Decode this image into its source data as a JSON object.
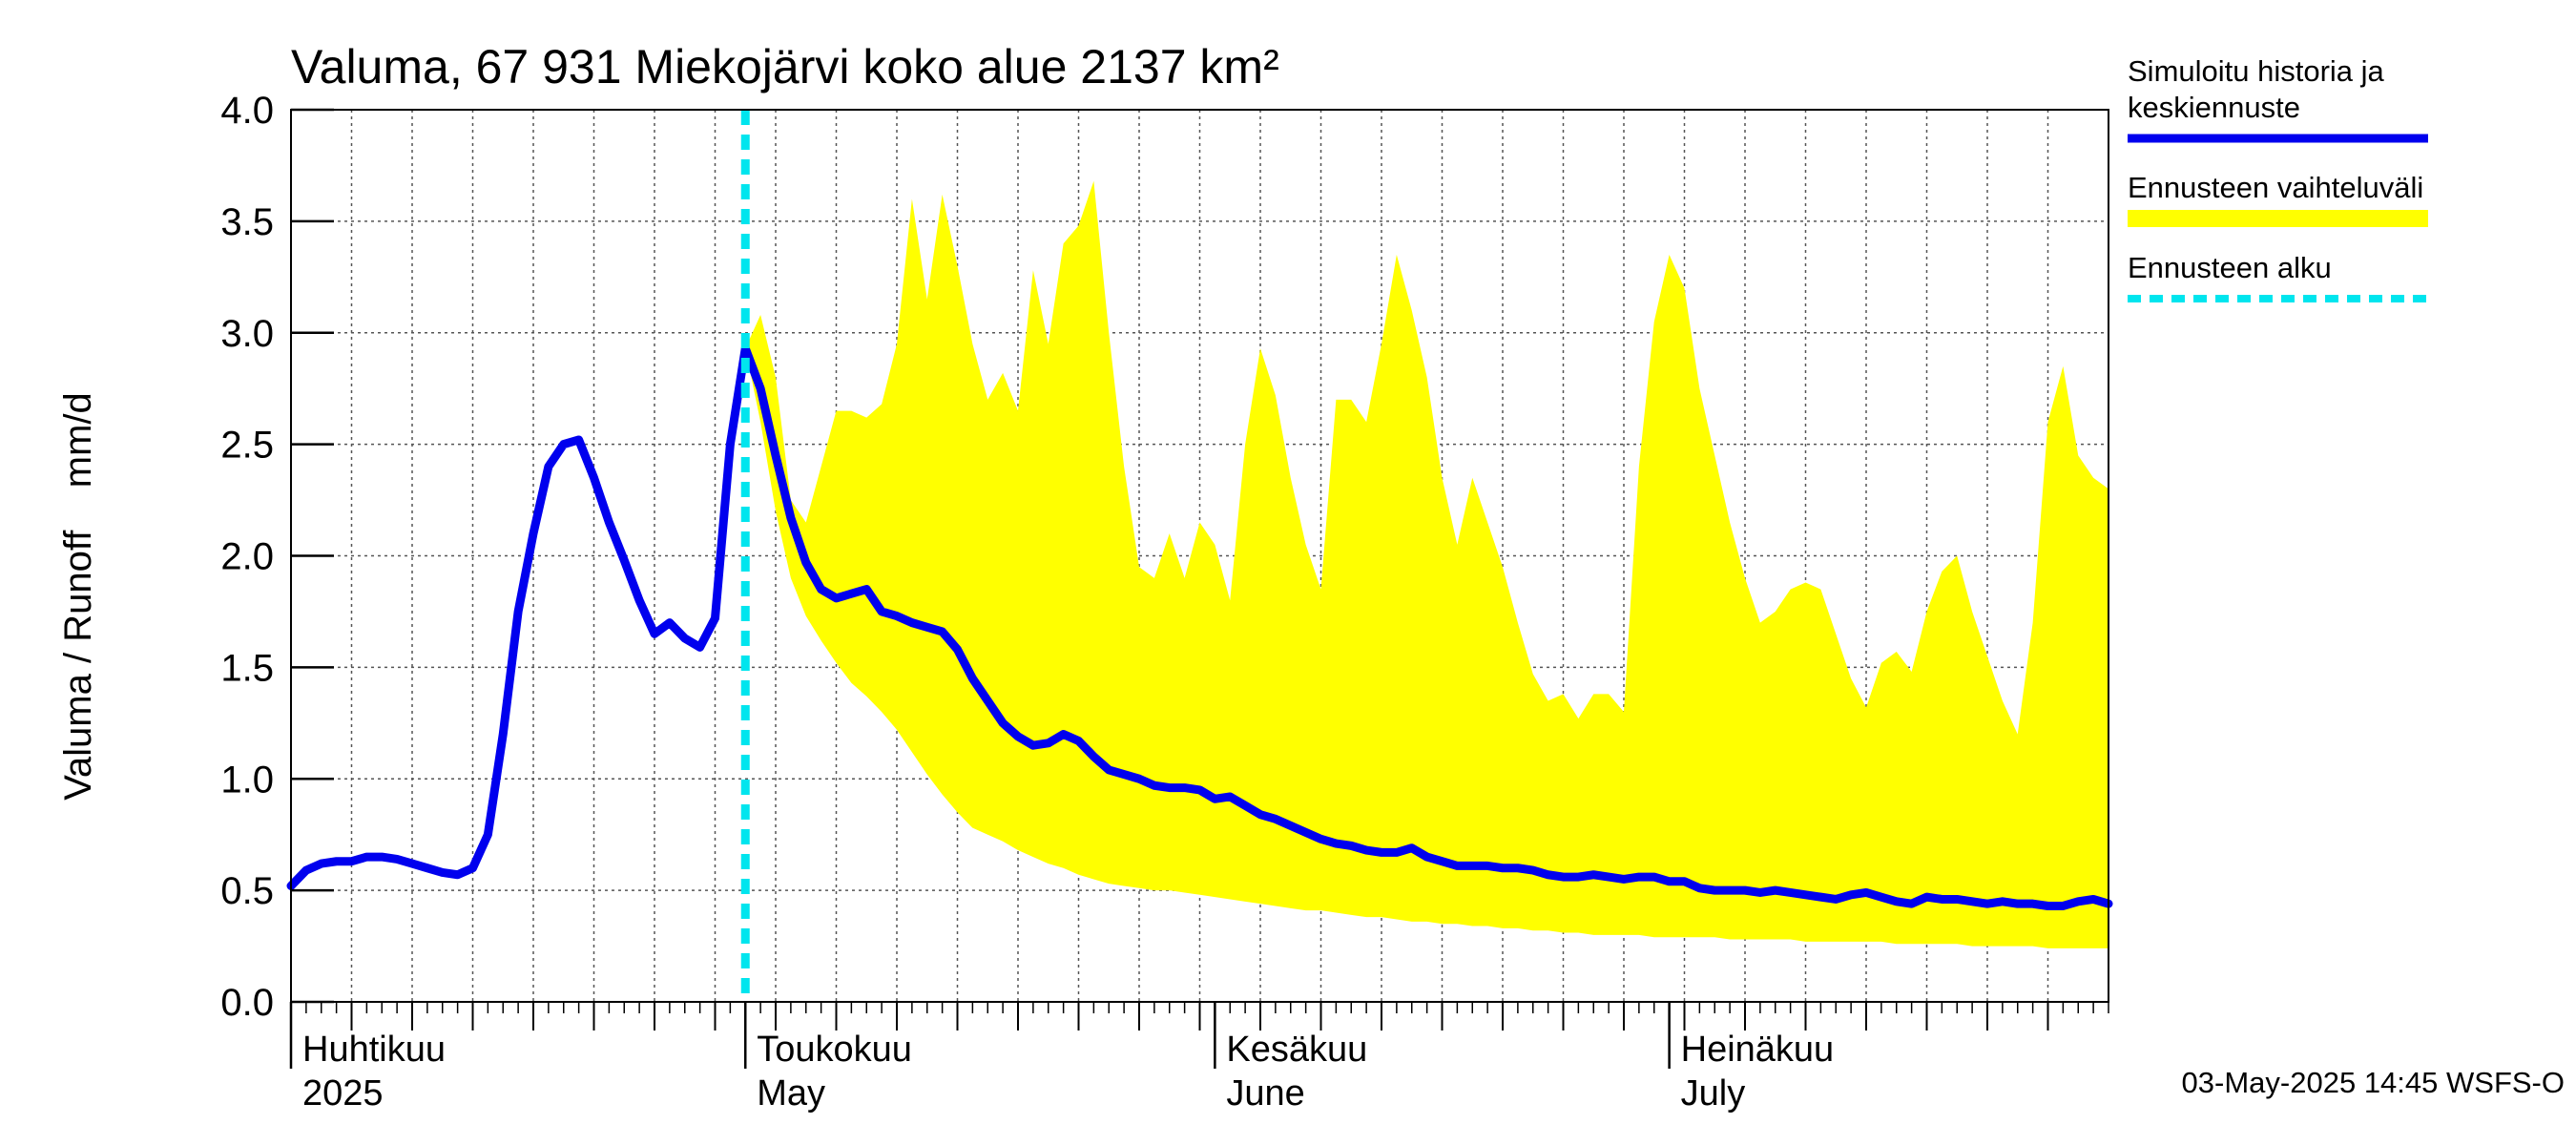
{
  "chart_data": {
    "type": "line",
    "title": "Valuma, 67 931 Miekojärvi koko alue 2137 km²",
    "ylabel": "Valuma / Runoff    mm/d",
    "ylim": [
      0,
      4.0
    ],
    "yticks": [
      "0.0",
      "0.5",
      "1.0",
      "1.5",
      "2.0",
      "2.5",
      "3.0",
      "3.5",
      "4.0"
    ],
    "x_range_days": [
      0,
      120
    ],
    "months": [
      {
        "day": 0,
        "line1": "Huhtikuu",
        "line2": "2025"
      },
      {
        "day": 30,
        "line1": "Toukokuu",
        "line2": "May"
      },
      {
        "day": 61,
        "line1": "Kesäkuu",
        "line2": "June"
      },
      {
        "day": 91,
        "line1": "Heinäkuu",
        "line2": "July"
      }
    ],
    "forecast_start_day": 30,
    "series": [
      {
        "name": "Simuloitu historia ja keskiennuste",
        "color": "#0000ee",
        "points": [
          [
            0,
            0.52
          ],
          [
            1,
            0.59
          ],
          [
            2,
            0.62
          ],
          [
            3,
            0.63
          ],
          [
            4,
            0.63
          ],
          [
            5,
            0.65
          ],
          [
            6,
            0.65
          ],
          [
            7,
            0.64
          ],
          [
            8,
            0.62
          ],
          [
            9,
            0.6
          ],
          [
            10,
            0.58
          ],
          [
            11,
            0.57
          ],
          [
            12,
            0.6
          ],
          [
            13,
            0.75
          ],
          [
            14,
            1.2
          ],
          [
            15,
            1.75
          ],
          [
            16,
            2.1
          ],
          [
            17,
            2.4
          ],
          [
            18,
            2.5
          ],
          [
            19,
            2.52
          ],
          [
            20,
            2.35
          ],
          [
            21,
            2.15
          ],
          [
            22,
            1.98
          ],
          [
            23,
            1.8
          ],
          [
            24,
            1.65
          ],
          [
            25,
            1.7
          ],
          [
            26,
            1.63
          ],
          [
            27,
            1.59
          ],
          [
            28,
            1.72
          ],
          [
            29,
            2.5
          ],
          [
            30,
            2.93
          ],
          [
            31,
            2.75
          ],
          [
            32,
            2.45
          ],
          [
            33,
            2.17
          ],
          [
            34,
            1.97
          ],
          [
            35,
            1.85
          ],
          [
            36,
            1.81
          ],
          [
            37,
            1.83
          ],
          [
            38,
            1.85
          ],
          [
            39,
            1.75
          ],
          [
            40,
            1.73
          ],
          [
            41,
            1.7
          ],
          [
            42,
            1.68
          ],
          [
            43,
            1.66
          ],
          [
            44,
            1.58
          ],
          [
            45,
            1.45
          ],
          [
            46,
            1.35
          ],
          [
            47,
            1.25
          ],
          [
            48,
            1.19
          ],
          [
            49,
            1.15
          ],
          [
            50,
            1.16
          ],
          [
            51,
            1.2
          ],
          [
            52,
            1.17
          ],
          [
            53,
            1.1
          ],
          [
            54,
            1.04
          ],
          [
            55,
            1.02
          ],
          [
            56,
            1.0
          ],
          [
            57,
            0.97
          ],
          [
            58,
            0.96
          ],
          [
            59,
            0.96
          ],
          [
            60,
            0.95
          ],
          [
            61,
            0.91
          ],
          [
            62,
            0.92
          ],
          [
            63,
            0.88
          ],
          [
            64,
            0.84
          ],
          [
            65,
            0.82
          ],
          [
            66,
            0.79
          ],
          [
            67,
            0.76
          ],
          [
            68,
            0.73
          ],
          [
            69,
            0.71
          ],
          [
            70,
            0.7
          ],
          [
            71,
            0.68
          ],
          [
            72,
            0.67
          ],
          [
            73,
            0.67
          ],
          [
            74,
            0.69
          ],
          [
            75,
            0.65
          ],
          [
            76,
            0.63
          ],
          [
            77,
            0.61
          ],
          [
            78,
            0.61
          ],
          [
            79,
            0.61
          ],
          [
            80,
            0.6
          ],
          [
            81,
            0.6
          ],
          [
            82,
            0.59
          ],
          [
            83,
            0.57
          ],
          [
            84,
            0.56
          ],
          [
            85,
            0.56
          ],
          [
            86,
            0.57
          ],
          [
            87,
            0.56
          ],
          [
            88,
            0.55
          ],
          [
            89,
            0.56
          ],
          [
            90,
            0.56
          ],
          [
            91,
            0.54
          ],
          [
            92,
            0.54
          ],
          [
            93,
            0.51
          ],
          [
            94,
            0.5
          ],
          [
            95,
            0.5
          ],
          [
            96,
            0.5
          ],
          [
            97,
            0.49
          ],
          [
            98,
            0.5
          ],
          [
            99,
            0.49
          ],
          [
            100,
            0.48
          ],
          [
            101,
            0.47
          ],
          [
            102,
            0.46
          ],
          [
            103,
            0.48
          ],
          [
            104,
            0.49
          ],
          [
            105,
            0.47
          ],
          [
            106,
            0.45
          ],
          [
            107,
            0.44
          ],
          [
            108,
            0.47
          ],
          [
            109,
            0.46
          ],
          [
            110,
            0.46
          ],
          [
            111,
            0.45
          ],
          [
            112,
            0.44
          ],
          [
            113,
            0.45
          ],
          [
            114,
            0.44
          ],
          [
            115,
            0.44
          ],
          [
            116,
            0.43
          ],
          [
            117,
            0.43
          ],
          [
            118,
            0.45
          ],
          [
            119,
            0.46
          ],
          [
            120,
            0.44
          ]
        ]
      }
    ],
    "band": {
      "name": "Ennusteen vaihteluväli",
      "color": "#ffff00",
      "upper": [
        [
          30,
          2.93
        ],
        [
          31,
          3.08
        ],
        [
          32,
          2.8
        ],
        [
          33,
          2.25
        ],
        [
          34,
          2.15
        ],
        [
          35,
          2.4
        ],
        [
          36,
          2.65
        ],
        [
          37,
          2.65
        ],
        [
          38,
          2.62
        ],
        [
          39,
          2.68
        ],
        [
          40,
          2.95
        ],
        [
          41,
          3.6
        ],
        [
          42,
          3.15
        ],
        [
          43,
          3.62
        ],
        [
          44,
          3.3
        ],
        [
          45,
          2.95
        ],
        [
          46,
          2.7
        ],
        [
          47,
          2.82
        ],
        [
          48,
          2.65
        ],
        [
          49,
          3.28
        ],
        [
          50,
          2.95
        ],
        [
          51,
          3.4
        ],
        [
          52,
          3.48
        ],
        [
          53,
          3.68
        ],
        [
          54,
          3.0
        ],
        [
          55,
          2.4
        ],
        [
          56,
          1.95
        ],
        [
          57,
          1.9
        ],
        [
          58,
          2.1
        ],
        [
          59,
          1.9
        ],
        [
          60,
          2.15
        ],
        [
          61,
          2.05
        ],
        [
          62,
          1.8
        ],
        [
          63,
          2.5
        ],
        [
          64,
          2.93
        ],
        [
          65,
          2.72
        ],
        [
          66,
          2.35
        ],
        [
          67,
          2.05
        ],
        [
          68,
          1.85
        ],
        [
          69,
          2.7
        ],
        [
          70,
          2.7
        ],
        [
          71,
          2.6
        ],
        [
          72,
          2.95
        ],
        [
          73,
          3.35
        ],
        [
          74,
          3.1
        ],
        [
          75,
          2.8
        ],
        [
          76,
          2.35
        ],
        [
          77,
          2.05
        ],
        [
          78,
          2.35
        ],
        [
          79,
          2.15
        ],
        [
          80,
          1.95
        ],
        [
          81,
          1.7
        ],
        [
          82,
          1.47
        ],
        [
          83,
          1.35
        ],
        [
          84,
          1.38
        ],
        [
          85,
          1.27
        ],
        [
          86,
          1.38
        ],
        [
          87,
          1.38
        ],
        [
          88,
          1.3
        ],
        [
          89,
          2.4
        ],
        [
          90,
          3.05
        ],
        [
          91,
          3.35
        ],
        [
          92,
          3.2
        ],
        [
          93,
          2.75
        ],
        [
          94,
          2.45
        ],
        [
          95,
          2.15
        ],
        [
          96,
          1.9
        ],
        [
          97,
          1.7
        ],
        [
          98,
          1.75
        ],
        [
          99,
          1.85
        ],
        [
          100,
          1.88
        ],
        [
          101,
          1.85
        ],
        [
          102,
          1.65
        ],
        [
          103,
          1.45
        ],
        [
          104,
          1.32
        ],
        [
          105,
          1.52
        ],
        [
          106,
          1.57
        ],
        [
          107,
          1.48
        ],
        [
          108,
          1.75
        ],
        [
          109,
          1.93
        ],
        [
          110,
          2.0
        ],
        [
          111,
          1.75
        ],
        [
          112,
          1.55
        ],
        [
          113,
          1.35
        ],
        [
          114,
          1.2
        ],
        [
          115,
          1.7
        ],
        [
          116,
          2.6
        ],
        [
          117,
          2.85
        ],
        [
          118,
          2.45
        ],
        [
          119,
          2.35
        ],
        [
          120,
          2.3
        ]
      ],
      "lower": [
        [
          30,
          2.93
        ],
        [
          31,
          2.6
        ],
        [
          32,
          2.2
        ],
        [
          33,
          1.9
        ],
        [
          34,
          1.73
        ],
        [
          35,
          1.62
        ],
        [
          36,
          1.52
        ],
        [
          37,
          1.43
        ],
        [
          38,
          1.37
        ],
        [
          39,
          1.3
        ],
        [
          40,
          1.22
        ],
        [
          41,
          1.12
        ],
        [
          42,
          1.02
        ],
        [
          43,
          0.93
        ],
        [
          44,
          0.85
        ],
        [
          45,
          0.78
        ],
        [
          46,
          0.75
        ],
        [
          47,
          0.72
        ],
        [
          48,
          0.68
        ],
        [
          49,
          0.65
        ],
        [
          50,
          0.62
        ],
        [
          51,
          0.6
        ],
        [
          52,
          0.57
        ],
        [
          53,
          0.55
        ],
        [
          54,
          0.53
        ],
        [
          55,
          0.52
        ],
        [
          56,
          0.51
        ],
        [
          57,
          0.5
        ],
        [
          58,
          0.5
        ],
        [
          59,
          0.49
        ],
        [
          60,
          0.48
        ],
        [
          61,
          0.47
        ],
        [
          62,
          0.46
        ],
        [
          63,
          0.45
        ],
        [
          64,
          0.44
        ],
        [
          65,
          0.43
        ],
        [
          66,
          0.42
        ],
        [
          67,
          0.41
        ],
        [
          68,
          0.41
        ],
        [
          69,
          0.4
        ],
        [
          70,
          0.39
        ],
        [
          71,
          0.38
        ],
        [
          72,
          0.38
        ],
        [
          73,
          0.37
        ],
        [
          74,
          0.36
        ],
        [
          75,
          0.36
        ],
        [
          76,
          0.35
        ],
        [
          77,
          0.35
        ],
        [
          78,
          0.34
        ],
        [
          79,
          0.34
        ],
        [
          80,
          0.33
        ],
        [
          81,
          0.33
        ],
        [
          82,
          0.32
        ],
        [
          83,
          0.32
        ],
        [
          84,
          0.31
        ],
        [
          85,
          0.31
        ],
        [
          86,
          0.3
        ],
        [
          87,
          0.3
        ],
        [
          88,
          0.3
        ],
        [
          89,
          0.3
        ],
        [
          90,
          0.29
        ],
        [
          91,
          0.29
        ],
        [
          92,
          0.29
        ],
        [
          93,
          0.29
        ],
        [
          94,
          0.29
        ],
        [
          95,
          0.28
        ],
        [
          96,
          0.28
        ],
        [
          97,
          0.28
        ],
        [
          98,
          0.28
        ],
        [
          99,
          0.28
        ],
        [
          100,
          0.27
        ],
        [
          101,
          0.27
        ],
        [
          102,
          0.27
        ],
        [
          103,
          0.27
        ],
        [
          104,
          0.27
        ],
        [
          105,
          0.27
        ],
        [
          106,
          0.26
        ],
        [
          107,
          0.26
        ],
        [
          108,
          0.26
        ],
        [
          109,
          0.26
        ],
        [
          110,
          0.26
        ],
        [
          111,
          0.25
        ],
        [
          112,
          0.25
        ],
        [
          113,
          0.25
        ],
        [
          114,
          0.25
        ],
        [
          115,
          0.25
        ],
        [
          116,
          0.24
        ],
        [
          117,
          0.24
        ],
        [
          118,
          0.24
        ],
        [
          119,
          0.24
        ],
        [
          120,
          0.24
        ]
      ]
    },
    "legend": [
      {
        "lines": [
          "Simuloitu historia ja",
          "keskiennuste"
        ],
        "color": "#0000ee",
        "style": "solid"
      },
      {
        "lines": [
          "Ennusteen vaihteluväli"
        ],
        "color": "#ffff00",
        "style": "solid"
      },
      {
        "lines": [
          "Ennusteen alku"
        ],
        "color": "#00e5ee",
        "style": "dashed"
      }
    ],
    "footer": "03-May-2025 14:45 WSFS-O"
  }
}
